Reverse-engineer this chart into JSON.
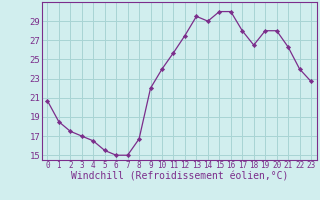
{
  "x": [
    0,
    1,
    2,
    3,
    4,
    5,
    6,
    7,
    8,
    9,
    10,
    11,
    12,
    13,
    14,
    15,
    16,
    17,
    18,
    19,
    20,
    21,
    22,
    23
  ],
  "y": [
    20.7,
    18.5,
    17.5,
    17.0,
    16.5,
    15.5,
    15.0,
    15.0,
    16.7,
    22.0,
    24.0,
    25.7,
    27.5,
    29.5,
    29.0,
    30.0,
    30.0,
    28.0,
    26.5,
    28.0,
    28.0,
    26.3,
    24.0,
    22.7
  ],
  "line_color": "#7b2d8b",
  "marker_color": "#7b2d8b",
  "bg_color": "#d1eeee",
  "grid_color": "#a8d4d4",
  "xlabel": "Windchill (Refroidissement éolien,°C)",
  "ylim": [
    14.5,
    31.0
  ],
  "xlim": [
    -0.5,
    23.5
  ],
  "yticks": [
    15,
    17,
    19,
    21,
    23,
    25,
    27,
    29
  ],
  "xticks": [
    0,
    1,
    2,
    3,
    4,
    5,
    6,
    7,
    8,
    9,
    10,
    11,
    12,
    13,
    14,
    15,
    16,
    17,
    18,
    19,
    20,
    21,
    22,
    23
  ],
  "spine_color": "#7b2d8b",
  "tick_color": "#7b2d8b",
  "xlabel_fontsize": 7.0,
  "ytick_fontsize": 6.5,
  "xtick_fontsize": 5.5
}
